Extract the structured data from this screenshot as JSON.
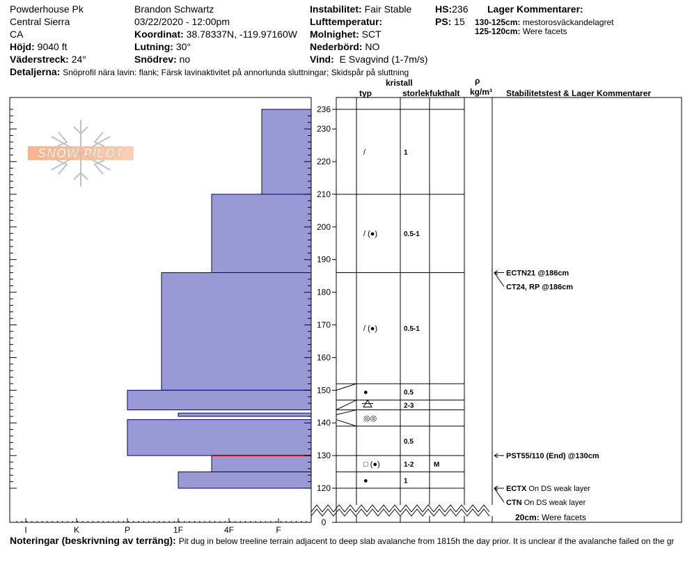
{
  "header": {
    "location": "Powderhouse Pk",
    "range": "Central Sierra",
    "state": "CA",
    "elevation_label": "Höjd:",
    "elevation": "9040 ft",
    "aspect_label": "Väderstreck:",
    "aspect": "24°",
    "observer": "Brandon Schwartz",
    "datetime": "03/22/2020 - 12:00pm",
    "coord_label": "Koordinat:",
    "coord": "38.78337N, -119.97160W",
    "slope_label": "Lutning:",
    "slope": "30°",
    "drift_label": "Snödrev:",
    "drift": "no",
    "instability_label": "Instabilitet:",
    "instability": "Fair Stable",
    "airtemp_label": "Lufttemperatur:",
    "airtemp": "",
    "clouds_label": "Molnighet:",
    "clouds": "SCT",
    "precip_label": "Nederbörd:",
    "precip": "NO",
    "wind_label": "Vind:",
    "wind": "E Svagvind (1-7m/s)",
    "hs_label": "HS:",
    "hs": "236",
    "ps_label": "PS:",
    "ps": "15",
    "layer_comments_title": "Lager Kommentarer:",
    "layer_comment_1_range": "130-125cm:",
    "layer_comment_1_text": "mestorosväckandelagret",
    "layer_comment_2_range": "125-120cm:",
    "layer_comment_2_text": "Were facets",
    "details_label": "Detaljerna:",
    "details": "Snöprofil nära lavin: flank; Färsk lavinaktivitet på annorlunda sluttningar; Skidspår på sluttning"
  },
  "columns": {
    "crystal_heading": "kristall",
    "type": "typ",
    "size": "storlek",
    "moisture": "fukthalt",
    "rho": "ρ",
    "density_unit": "kg/m³",
    "tests_heading": "Stabilitetstest & Lager Kommentarer"
  },
  "logo_text": "SNOW PILOT",
  "footer": {
    "notes_label": "Noteringar (beskrivning av terräng):",
    "notes": "Pit dug in below treeline terrain adjacent to deep slab avalanche from 1815h the day prior. It is unclear if the avalanche failed on the gr"
  },
  "colors": {
    "layer_fill": "#9999d6",
    "layer_stroke": "#000080",
    "critical_line": "#cc0000"
  },
  "chart_data": {
    "type": "bar",
    "orientation": "horizontal",
    "x_categories": [
      "I",
      "K",
      "P",
      "1F",
      "4F",
      "F"
    ],
    "y_range": [
      0,
      236
    ],
    "y_ticks": [
      0,
      120,
      130,
      140,
      150,
      160,
      170,
      180,
      190,
      200,
      210,
      220,
      230,
      236
    ],
    "hardness_layers": [
      {
        "top": 236,
        "bottom": 210,
        "hardness": "4F-F"
      },
      {
        "top": 210,
        "bottom": 186,
        "hardness": "1F-4F"
      },
      {
        "top": 186,
        "bottom": 150,
        "hardness": "P-1F"
      },
      {
        "top": 150,
        "bottom": 144,
        "hardness": "P"
      },
      {
        "top": 143,
        "bottom": 142,
        "hardness": "1F"
      },
      {
        "top": 141,
        "bottom": 130,
        "hardness": "P"
      },
      {
        "top": 130,
        "bottom": 125,
        "hardness": "1F-4F"
      },
      {
        "top": 125,
        "bottom": 120,
        "hardness": "1F"
      }
    ],
    "critical_layer": 130,
    "layers": [
      {
        "top": 236,
        "bottom": 210,
        "type": "/",
        "size": "1",
        "moisture": ""
      },
      {
        "top": 210,
        "bottom": 186,
        "type": "/ (●)",
        "size": "0.5-1",
        "moisture": ""
      },
      {
        "top": 186,
        "bottom": 152,
        "type": "/ (●)",
        "size": "0.5-1",
        "moisture": ""
      },
      {
        "top": 152,
        "bottom": 147,
        "type": "●",
        "size": "0.5",
        "moisture": ""
      },
      {
        "top": 147,
        "bottom": 144,
        "type": "graupel",
        "size": "2-3",
        "moisture": ""
      },
      {
        "top": 144,
        "bottom": 139,
        "type": "◎◎",
        "size": "",
        "moisture": ""
      },
      {
        "top": 139,
        "bottom": 130,
        "type": "",
        "size": "0.5",
        "moisture": ""
      },
      {
        "top": 130,
        "bottom": 125,
        "type": "□ (●)",
        "size": "1-2",
        "moisture": "M"
      },
      {
        "top": 125,
        "bottom": 120,
        "type": "●",
        "size": "1",
        "moisture": ""
      }
    ],
    "tests": [
      {
        "depth": 186,
        "label": "ECTN21 @186cm"
      },
      {
        "depth": 186,
        "label": "CT24, RP @186cm"
      },
      {
        "depth": 130,
        "label": "PST55/110 (End) @130cm"
      },
      {
        "depth": 120,
        "label": "ECTX On DS weak layer",
        "bold": "ECTX",
        "rest": "On DS weak layer"
      },
      {
        "depth": 120,
        "label": "CTN On DS weak layer",
        "bold": "CTN",
        "rest": "On DS weak layer"
      }
    ],
    "clipped_comment_range": "20cm:",
    "clipped_comment_text": "Were facets"
  }
}
